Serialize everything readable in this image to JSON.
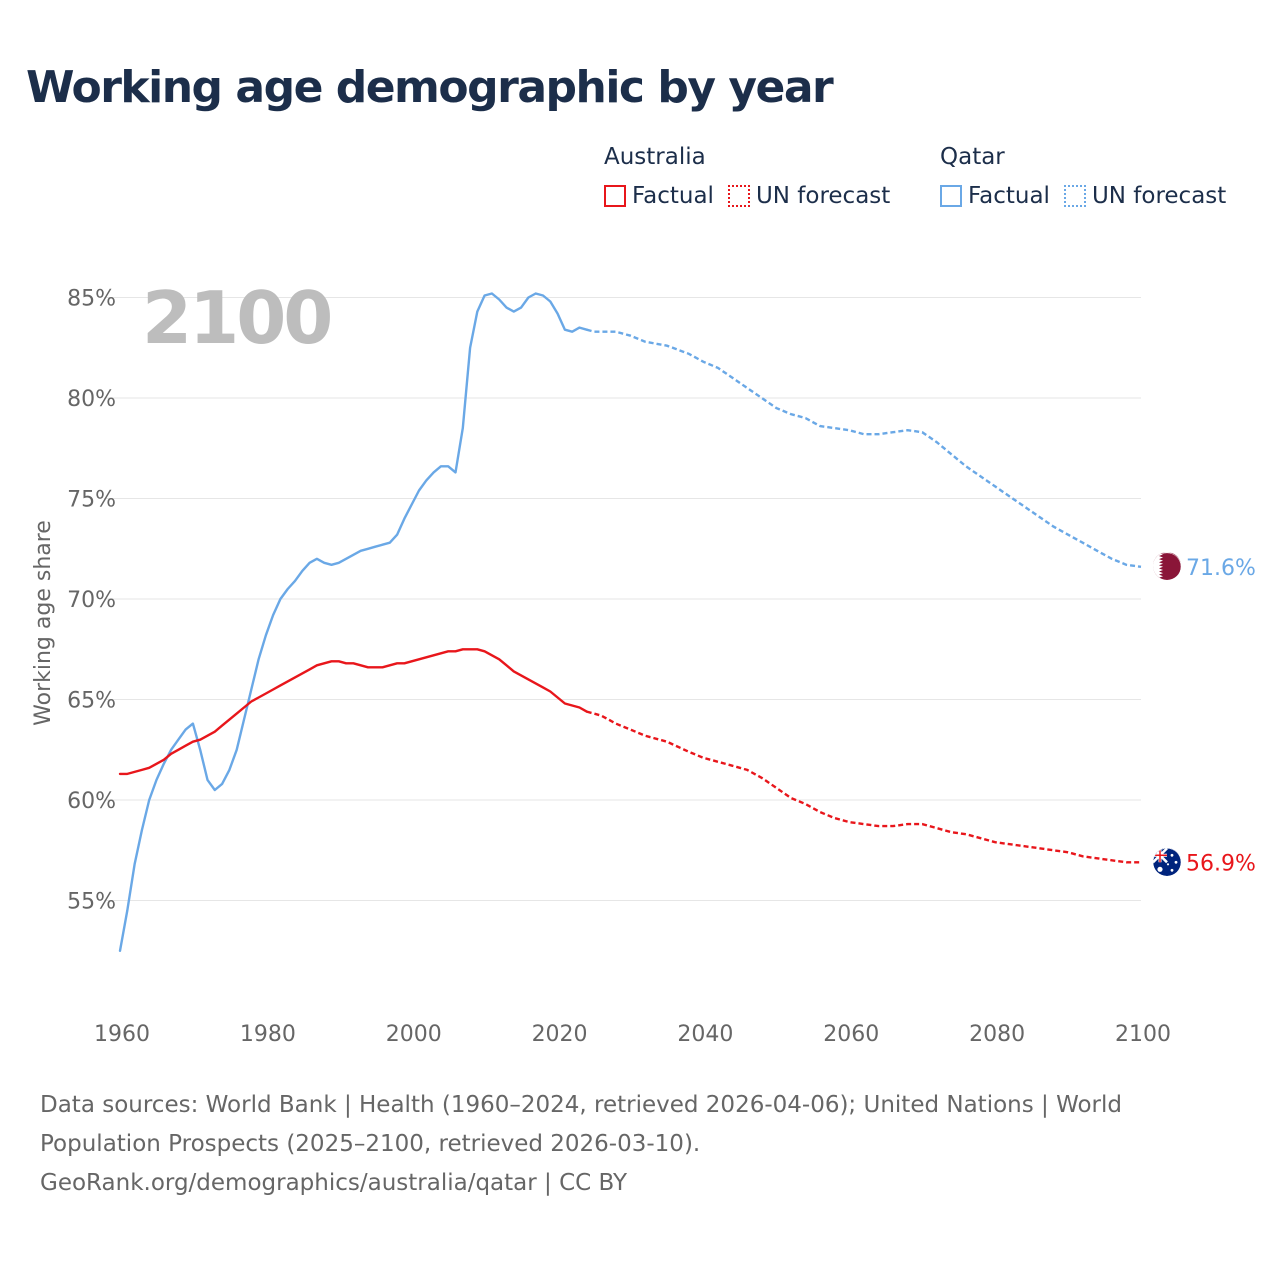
{
  "title": "Working age demographic by year",
  "legend": {
    "groups": [
      {
        "name": "Australia",
        "color": "#e8161b",
        "items": [
          {
            "label": "Factual",
            "style": "solid"
          },
          {
            "label": "UN forecast",
            "style": "dotted"
          }
        ]
      },
      {
        "name": "Qatar",
        "color": "#6aa8e6",
        "items": [
          {
            "label": "Factual",
            "style": "solid"
          },
          {
            "label": "UN forecast",
            "style": "dotted"
          }
        ]
      }
    ]
  },
  "sources": {
    "line1": "Data sources: World Bank | Health (1960–2024, retrieved 2026-04-06); United Nations | World Population Prospects (2025–2100, retrieved 2026-03-10).",
    "line2": "GeoRank.org/demographics/australia/qatar | CC BY"
  },
  "chart_data": {
    "type": "line",
    "title": "Working age demographic by year",
    "year_label": "2100",
    "xlabel": "",
    "ylabel": "Working age share",
    "xlim": [
      1960,
      2100
    ],
    "ylim": [
      50,
      86
    ],
    "x_ticks": [
      1960,
      1980,
      2000,
      2020,
      2040,
      2060,
      2080,
      2100
    ],
    "y_ticks": [
      55,
      60,
      65,
      70,
      75,
      80,
      85
    ],
    "y_tick_suffix": "%",
    "factual_end_year": 2024,
    "series": [
      {
        "name": "Qatar",
        "color": "#6aa8e6",
        "end_label": "71.6%",
        "flag_colors": [
          "#8a1538",
          "#ffffff"
        ],
        "points": [
          [
            1960,
            52.5
          ],
          [
            1961,
            54.5
          ],
          [
            1962,
            56.8
          ],
          [
            1963,
            58.5
          ],
          [
            1964,
            60.0
          ],
          [
            1965,
            61.0
          ],
          [
            1966,
            61.8
          ],
          [
            1967,
            62.5
          ],
          [
            1968,
            63.0
          ],
          [
            1969,
            63.5
          ],
          [
            1970,
            63.8
          ],
          [
            1971,
            62.5
          ],
          [
            1972,
            61.0
          ],
          [
            1973,
            60.5
          ],
          [
            1974,
            60.8
          ],
          [
            1975,
            61.5
          ],
          [
            1976,
            62.5
          ],
          [
            1977,
            64.0
          ],
          [
            1978,
            65.5
          ],
          [
            1979,
            67.0
          ],
          [
            1980,
            68.2
          ],
          [
            1981,
            69.2
          ],
          [
            1982,
            70.0
          ],
          [
            1983,
            70.5
          ],
          [
            1984,
            70.9
          ],
          [
            1985,
            71.4
          ],
          [
            1986,
            71.8
          ],
          [
            1987,
            72.0
          ],
          [
            1988,
            71.8
          ],
          [
            1989,
            71.7
          ],
          [
            1990,
            71.8
          ],
          [
            1991,
            72.0
          ],
          [
            1992,
            72.2
          ],
          [
            1993,
            72.4
          ],
          [
            1994,
            72.5
          ],
          [
            1995,
            72.6
          ],
          [
            1996,
            72.7
          ],
          [
            1997,
            72.8
          ],
          [
            1998,
            73.2
          ],
          [
            1999,
            74.0
          ],
          [
            2000,
            74.7
          ],
          [
            2001,
            75.4
          ],
          [
            2002,
            75.9
          ],
          [
            2003,
            76.3
          ],
          [
            2004,
            76.6
          ],
          [
            2005,
            76.6
          ],
          [
            2006,
            76.3
          ],
          [
            2007,
            78.5
          ],
          [
            2008,
            82.5
          ],
          [
            2009,
            84.3
          ],
          [
            2010,
            85.1
          ],
          [
            2011,
            85.2
          ],
          [
            2012,
            84.9
          ],
          [
            2013,
            84.5
          ],
          [
            2014,
            84.3
          ],
          [
            2015,
            84.5
          ],
          [
            2016,
            85.0
          ],
          [
            2017,
            85.2
          ],
          [
            2018,
            85.1
          ],
          [
            2019,
            84.8
          ],
          [
            2020,
            84.2
          ],
          [
            2021,
            83.4
          ],
          [
            2022,
            83.3
          ],
          [
            2023,
            83.5
          ],
          [
            2024,
            83.4
          ],
          [
            2025,
            83.3
          ],
          [
            2028,
            83.3
          ],
          [
            2030,
            83.1
          ],
          [
            2032,
            82.8
          ],
          [
            2035,
            82.6
          ],
          [
            2038,
            82.2
          ],
          [
            2040,
            81.8
          ],
          [
            2042,
            81.5
          ],
          [
            2044,
            81.0
          ],
          [
            2046,
            80.5
          ],
          [
            2048,
            80.0
          ],
          [
            2050,
            79.5
          ],
          [
            2052,
            79.2
          ],
          [
            2054,
            79.0
          ],
          [
            2056,
            78.6
          ],
          [
            2058,
            78.5
          ],
          [
            2060,
            78.4
          ],
          [
            2062,
            78.2
          ],
          [
            2064,
            78.2
          ],
          [
            2066,
            78.3
          ],
          [
            2068,
            78.4
          ],
          [
            2070,
            78.3
          ],
          [
            2072,
            77.8
          ],
          [
            2074,
            77.2
          ],
          [
            2076,
            76.6
          ],
          [
            2078,
            76.1
          ],
          [
            2080,
            75.6
          ],
          [
            2082,
            75.1
          ],
          [
            2084,
            74.6
          ],
          [
            2086,
            74.1
          ],
          [
            2088,
            73.6
          ],
          [
            2090,
            73.2
          ],
          [
            2092,
            72.8
          ],
          [
            2094,
            72.4
          ],
          [
            2096,
            72.0
          ],
          [
            2098,
            71.7
          ],
          [
            2100,
            71.6
          ]
        ]
      },
      {
        "name": "Australia",
        "color": "#e8161b",
        "end_label": "56.9%",
        "flag_colors": [
          "#00247d",
          "#e8161b",
          "#ffffff"
        ],
        "points": [
          [
            1960,
            61.3
          ],
          [
            1961,
            61.3
          ],
          [
            1962,
            61.4
          ],
          [
            1963,
            61.5
          ],
          [
            1964,
            61.6
          ],
          [
            1965,
            61.8
          ],
          [
            1966,
            62.0
          ],
          [
            1967,
            62.3
          ],
          [
            1968,
            62.5
          ],
          [
            1969,
            62.7
          ],
          [
            1970,
            62.9
          ],
          [
            1971,
            63.0
          ],
          [
            1972,
            63.2
          ],
          [
            1973,
            63.4
          ],
          [
            1974,
            63.7
          ],
          [
            1975,
            64.0
          ],
          [
            1976,
            64.3
          ],
          [
            1977,
            64.6
          ],
          [
            1978,
            64.9
          ],
          [
            1979,
            65.1
          ],
          [
            1980,
            65.3
          ],
          [
            1981,
            65.5
          ],
          [
            1982,
            65.7
          ],
          [
            1983,
            65.9
          ],
          [
            1984,
            66.1
          ],
          [
            1985,
            66.3
          ],
          [
            1986,
            66.5
          ],
          [
            1987,
            66.7
          ],
          [
            1988,
            66.8
          ],
          [
            1989,
            66.9
          ],
          [
            1990,
            66.9
          ],
          [
            1991,
            66.8
          ],
          [
            1992,
            66.8
          ],
          [
            1993,
            66.7
          ],
          [
            1994,
            66.6
          ],
          [
            1995,
            66.6
          ],
          [
            1996,
            66.6
          ],
          [
            1997,
            66.7
          ],
          [
            1998,
            66.8
          ],
          [
            1999,
            66.8
          ],
          [
            2000,
            66.9
          ],
          [
            2001,
            67.0
          ],
          [
            2002,
            67.1
          ],
          [
            2003,
            67.2
          ],
          [
            2004,
            67.3
          ],
          [
            2005,
            67.4
          ],
          [
            2006,
            67.4
          ],
          [
            2007,
            67.5
          ],
          [
            2008,
            67.5
          ],
          [
            2009,
            67.5
          ],
          [
            2010,
            67.4
          ],
          [
            2011,
            67.2
          ],
          [
            2012,
            67.0
          ],
          [
            2013,
            66.7
          ],
          [
            2014,
            66.4
          ],
          [
            2015,
            66.2
          ],
          [
            2016,
            66.0
          ],
          [
            2017,
            65.8
          ],
          [
            2018,
            65.6
          ],
          [
            2019,
            65.4
          ],
          [
            2020,
            65.1
          ],
          [
            2021,
            64.8
          ],
          [
            2022,
            64.7
          ],
          [
            2023,
            64.6
          ],
          [
            2024,
            64.4
          ],
          [
            2026,
            64.2
          ],
          [
            2028,
            63.8
          ],
          [
            2030,
            63.5
          ],
          [
            2032,
            63.2
          ],
          [
            2035,
            62.9
          ],
          [
            2038,
            62.4
          ],
          [
            2040,
            62.1
          ],
          [
            2042,
            61.9
          ],
          [
            2044,
            61.7
          ],
          [
            2046,
            61.5
          ],
          [
            2048,
            61.1
          ],
          [
            2050,
            60.6
          ],
          [
            2052,
            60.1
          ],
          [
            2054,
            59.8
          ],
          [
            2056,
            59.4
          ],
          [
            2058,
            59.1
          ],
          [
            2060,
            58.9
          ],
          [
            2062,
            58.8
          ],
          [
            2064,
            58.7
          ],
          [
            2066,
            58.7
          ],
          [
            2068,
            58.8
          ],
          [
            2070,
            58.8
          ],
          [
            2072,
            58.6
          ],
          [
            2074,
            58.4
          ],
          [
            2076,
            58.3
          ],
          [
            2078,
            58.1
          ],
          [
            2080,
            57.9
          ],
          [
            2082,
            57.8
          ],
          [
            2084,
            57.7
          ],
          [
            2086,
            57.6
          ],
          [
            2088,
            57.5
          ],
          [
            2090,
            57.4
          ],
          [
            2092,
            57.2
          ],
          [
            2094,
            57.1
          ],
          [
            2096,
            57.0
          ],
          [
            2098,
            56.9
          ],
          [
            2100,
            56.9
          ]
        ]
      }
    ]
  }
}
